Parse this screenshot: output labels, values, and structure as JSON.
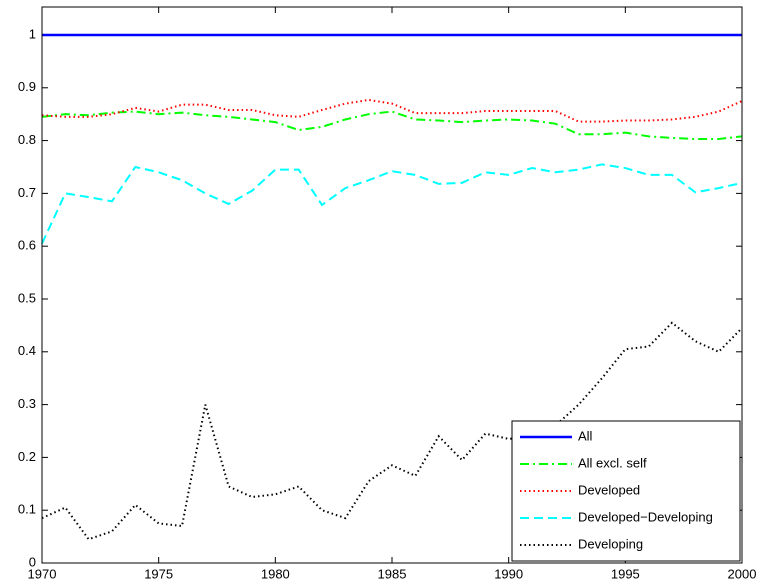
{
  "chart_data": {
    "type": "line",
    "x": [
      1970,
      1971,
      1972,
      1973,
      1974,
      1975,
      1976,
      1977,
      1978,
      1979,
      1980,
      1981,
      1982,
      1983,
      1984,
      1985,
      1986,
      1987,
      1988,
      1989,
      1990,
      1991,
      1992,
      1993,
      1994,
      1995,
      1996,
      1997,
      1998,
      1999,
      2000
    ],
    "series": [
      {
        "name": "All",
        "color": "#0000ff",
        "dash": "solid",
        "values": [
          1,
          1,
          1,
          1,
          1,
          1,
          1,
          1,
          1,
          1,
          1,
          1,
          1,
          1,
          1,
          1,
          1,
          1,
          1,
          1,
          1,
          1,
          1,
          1,
          1,
          1,
          1,
          1,
          1,
          1,
          1
        ]
      },
      {
        "name": "All excl. self",
        "color": "#00ff00",
        "dash": "dashdot",
        "values": [
          0.845,
          0.85,
          0.848,
          0.853,
          0.855,
          0.85,
          0.853,
          0.848,
          0.845,
          0.84,
          0.835,
          0.82,
          0.826,
          0.84,
          0.85,
          0.855,
          0.84,
          0.838,
          0.835,
          0.838,
          0.84,
          0.838,
          0.832,
          0.812,
          0.812,
          0.815,
          0.808,
          0.805,
          0.803,
          0.803,
          0.808
        ]
      },
      {
        "name": "Developed",
        "color": "#ff0000",
        "dash": "dotted",
        "values": [
          0.848,
          0.845,
          0.845,
          0.85,
          0.862,
          0.855,
          0.868,
          0.868,
          0.858,
          0.858,
          0.848,
          0.845,
          0.858,
          0.87,
          0.877,
          0.87,
          0.852,
          0.852,
          0.852,
          0.856,
          0.856,
          0.856,
          0.856,
          0.836,
          0.836,
          0.838,
          0.838,
          0.84,
          0.845,
          0.855,
          0.875
        ]
      },
      {
        "name": "Developed−Developing",
        "color": "#00ffff",
        "dash": "dashed",
        "values": [
          0.605,
          0.7,
          0.693,
          0.685,
          0.75,
          0.74,
          0.725,
          0.7,
          0.68,
          0.705,
          0.745,
          0.745,
          0.678,
          0.71,
          0.725,
          0.742,
          0.735,
          0.718,
          0.72,
          0.74,
          0.735,
          0.748,
          0.74,
          0.745,
          0.755,
          0.748,
          0.735,
          0.735,
          0.702,
          0.71,
          0.72
        ]
      },
      {
        "name": "Developing",
        "color": "#000000",
        "dash": "dotted",
        "values": [
          0.085,
          0.105,
          0.045,
          0.06,
          0.11,
          0.075,
          0.07,
          0.3,
          0.145,
          0.125,
          0.13,
          0.145,
          0.1,
          0.085,
          0.155,
          0.185,
          0.165,
          0.24,
          0.195,
          0.245,
          0.235,
          0.24,
          0.26,
          0.3,
          0.35,
          0.405,
          0.41,
          0.455,
          0.42,
          0.4,
          0.445
        ]
      }
    ],
    "xlim": [
      1970,
      2000
    ],
    "xticks": [
      1970,
      1975,
      1980,
      1985,
      1990,
      1995,
      2000
    ],
    "ylim": [
      0,
      1.053
    ],
    "yticks": [
      0,
      0.1,
      0.2,
      0.3,
      0.4,
      0.5,
      0.6,
      0.7,
      0.8,
      0.9,
      1
    ],
    "grid": false,
    "legend": "southeast"
  }
}
